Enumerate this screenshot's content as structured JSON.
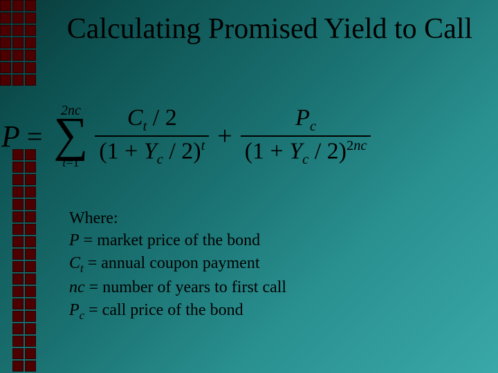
{
  "title": "Calculating Promised Yield to Call",
  "formula": {
    "lhs": "P",
    "eq": "=",
    "sum_upper_prefix": "2",
    "sum_upper_var": "nc",
    "sigma": "∑",
    "sum_lower_var": "t",
    "sum_lower_eq": "=",
    "sum_lower_val": "1",
    "term1_num_var": "C",
    "term1_num_sub": "t",
    "term1_num_div": " / 2",
    "term1_den_open": "(1 + ",
    "term1_den_var": "Y",
    "term1_den_sub": "c",
    "term1_den_div": " / 2)",
    "term1_den_sup": "t",
    "plus": "+",
    "term2_num_var": "P",
    "term2_num_sub": "c",
    "term2_den_open": "(1 + ",
    "term2_den_var": "Y",
    "term2_den_sub": "c",
    "term2_den_div": " / 2)",
    "term2_den_sup_prefix": "2",
    "term2_den_sup_var": "nc"
  },
  "where": {
    "heading": "Where:",
    "l1_var": "P",
    "l1_rest": " = market price of the bond",
    "l2_var": "C",
    "l2_sub": "t",
    "l2_rest": " = annual coupon payment",
    "l3_var": "nc",
    "l3_rest": " = number of years to first call",
    "l4_var": "P",
    "l4_sub": "c",
    "l4_rest": " = call price of the bond"
  },
  "style": {
    "bg_gradient_stops": [
      "#0a3838",
      "#0d5050",
      "#1a7070",
      "#2a9090",
      "#3aa8a8"
    ],
    "deco_color": "#4d0000",
    "title_fontsize": 42,
    "formula_fontsize": 34,
    "where_fontsize": 24,
    "text_color": "#000000",
    "deco_square_size": 16,
    "deco_cols": 3
  }
}
